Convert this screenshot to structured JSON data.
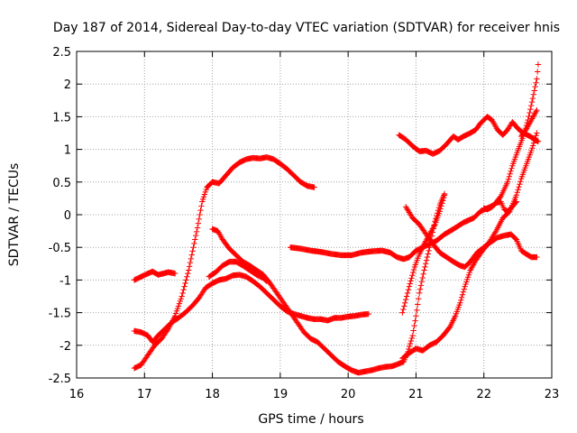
{
  "chart_data": {
    "type": "scatter",
    "title": "Day 187 of 2014, Sidereal Day-to-day VTEC variation (SDTVAR) for receiver hnis",
    "xlabel": "GPS time / hours",
    "ylabel": "SDTVAR / TECUs",
    "xlim": [
      16,
      23
    ],
    "ylim": [
      -2.5,
      2.5
    ],
    "xticks": [
      16,
      17,
      18,
      19,
      20,
      21,
      22,
      23
    ],
    "yticks": [
      -2.5,
      -2,
      -1.5,
      -1,
      -0.5,
      0,
      0.5,
      1,
      1.5,
      2,
      2.5
    ],
    "xtick_labels": [
      "16",
      "17",
      "18",
      "19",
      "20",
      "21",
      "22",
      "23"
    ],
    "ytick_labels": [
      "-2.5",
      "-2",
      "-1.5",
      "-1",
      "-0.5",
      "0",
      "0.5",
      "1",
      "1.5",
      "2",
      "2.5"
    ],
    "grid": true,
    "marker": "+",
    "color": "#ff0000",
    "series": [
      {
        "name": "s1",
        "points": [
          [
            16.85,
            -1.0
          ],
          [
            16.95,
            -0.95
          ],
          [
            17.05,
            -0.9
          ],
          [
            17.12,
            -0.87
          ],
          [
            17.2,
            -0.92
          ],
          [
            17.28,
            -0.9
          ],
          [
            17.35,
            -0.88
          ],
          [
            17.45,
            -0.9
          ]
        ]
      },
      {
        "name": "s2",
        "points": [
          [
            16.85,
            -2.35
          ],
          [
            16.95,
            -2.3
          ],
          [
            17.05,
            -2.15
          ],
          [
            17.15,
            -2.0
          ],
          [
            17.25,
            -1.9
          ],
          [
            17.35,
            -1.75
          ],
          [
            17.45,
            -1.55
          ],
          [
            17.55,
            -1.25
          ],
          [
            17.65,
            -0.85
          ],
          [
            17.72,
            -0.5
          ],
          [
            17.78,
            -0.2
          ],
          [
            17.85,
            0.2
          ],
          [
            17.92,
            0.42
          ],
          [
            18.0,
            0.5
          ],
          [
            18.1,
            0.48
          ],
          [
            18.2,
            0.6
          ],
          [
            18.3,
            0.72
          ],
          [
            18.4,
            0.8
          ],
          [
            18.5,
            0.85
          ],
          [
            18.6,
            0.87
          ],
          [
            18.7,
            0.86
          ],
          [
            18.8,
            0.88
          ],
          [
            18.9,
            0.85
          ],
          [
            19.0,
            0.78
          ],
          [
            19.1,
            0.7
          ],
          [
            19.2,
            0.6
          ],
          [
            19.3,
            0.5
          ],
          [
            19.4,
            0.44
          ],
          [
            19.5,
            0.42
          ]
        ]
      },
      {
        "name": "s3",
        "points": [
          [
            16.85,
            -1.78
          ],
          [
            16.95,
            -1.8
          ],
          [
            17.05,
            -1.85
          ],
          [
            17.12,
            -1.95
          ],
          [
            17.2,
            -1.85
          ],
          [
            17.3,
            -1.75
          ],
          [
            17.4,
            -1.65
          ],
          [
            17.5,
            -1.58
          ],
          [
            17.6,
            -1.5
          ],
          [
            17.7,
            -1.4
          ],
          [
            17.8,
            -1.28
          ],
          [
            17.9,
            -1.12
          ],
          [
            18.0,
            -1.05
          ],
          [
            18.1,
            -1.0
          ],
          [
            18.2,
            -0.98
          ],
          [
            18.3,
            -0.93
          ],
          [
            18.4,
            -0.92
          ],
          [
            18.5,
            -0.95
          ],
          [
            18.6,
            -1.02
          ],
          [
            18.7,
            -1.1
          ],
          [
            18.8,
            -1.2
          ],
          [
            18.9,
            -1.3
          ],
          [
            19.0,
            -1.4
          ],
          [
            19.1,
            -1.48
          ],
          [
            19.2,
            -1.52
          ],
          [
            19.3,
            -1.55
          ],
          [
            19.4,
            -1.58
          ],
          [
            19.5,
            -1.6
          ],
          [
            19.6,
            -1.6
          ],
          [
            19.7,
            -1.62
          ],
          [
            19.8,
            -1.58
          ],
          [
            19.9,
            -1.58
          ],
          [
            20.0,
            -1.56
          ],
          [
            20.1,
            -1.55
          ],
          [
            20.2,
            -1.53
          ],
          [
            20.3,
            -1.52
          ]
        ]
      },
      {
        "name": "s4",
        "points": [
          [
            18.0,
            -0.22
          ],
          [
            18.08,
            -0.25
          ],
          [
            18.15,
            -0.38
          ],
          [
            18.25,
            -0.52
          ],
          [
            18.35,
            -0.62
          ],
          [
            18.45,
            -0.72
          ],
          [
            18.55,
            -0.78
          ],
          [
            18.65,
            -0.85
          ],
          [
            18.75,
            -0.92
          ],
          [
            18.85,
            -1.05
          ],
          [
            18.95,
            -1.2
          ],
          [
            19.05,
            -1.35
          ],
          [
            19.15,
            -1.5
          ],
          [
            19.25,
            -1.65
          ],
          [
            19.35,
            -1.8
          ],
          [
            19.45,
            -1.9
          ],
          [
            19.55,
            -1.95
          ],
          [
            19.65,
            -2.05
          ],
          [
            19.75,
            -2.15
          ],
          [
            19.85,
            -2.25
          ],
          [
            19.95,
            -2.32
          ],
          [
            20.05,
            -2.38
          ],
          [
            20.15,
            -2.42
          ],
          [
            20.25,
            -2.4
          ],
          [
            20.35,
            -2.38
          ],
          [
            20.45,
            -2.35
          ],
          [
            20.55,
            -2.33
          ],
          [
            20.65,
            -2.32
          ],
          [
            20.75,
            -2.28
          ],
          [
            20.82,
            -2.25
          ],
          [
            20.88,
            -2.1
          ],
          [
            20.95,
            -1.85
          ],
          [
            21.0,
            -1.55
          ],
          [
            21.05,
            -1.2
          ],
          [
            21.12,
            -0.85
          ],
          [
            21.2,
            -0.5
          ],
          [
            21.28,
            -0.1
          ],
          [
            21.35,
            0.15
          ],
          [
            21.42,
            0.32
          ]
        ]
      },
      {
        "name": "s5",
        "points": [
          [
            17.95,
            -0.95
          ],
          [
            18.05,
            -0.88
          ],
          [
            18.15,
            -0.78
          ],
          [
            18.25,
            -0.72
          ],
          [
            18.35,
            -0.72
          ],
          [
            18.45,
            -0.78
          ],
          [
            18.55,
            -0.85
          ],
          [
            18.65,
            -0.92
          ],
          [
            18.75,
            -0.97
          ],
          [
            18.8,
            -1.02
          ]
        ]
      },
      {
        "name": "s6",
        "points": [
          [
            19.15,
            -0.5
          ],
          [
            19.3,
            -0.52
          ],
          [
            19.45,
            -0.55
          ],
          [
            19.6,
            -0.57
          ],
          [
            19.75,
            -0.6
          ],
          [
            19.9,
            -0.62
          ],
          [
            20.05,
            -0.62
          ],
          [
            20.2,
            -0.58
          ],
          [
            20.35,
            -0.56
          ],
          [
            20.5,
            -0.55
          ],
          [
            20.62,
            -0.58
          ],
          [
            20.72,
            -0.65
          ],
          [
            20.82,
            -0.68
          ],
          [
            20.9,
            -0.65
          ],
          [
            21.0,
            -0.55
          ],
          [
            21.1,
            -0.5
          ],
          [
            21.2,
            -0.45
          ],
          [
            21.3,
            -0.4
          ],
          [
            21.42,
            -0.3
          ],
          [
            21.55,
            -0.22
          ],
          [
            21.7,
            -0.12
          ],
          [
            21.85,
            -0.05
          ],
          [
            21.95,
            0.05
          ],
          [
            22.05,
            0.1
          ],
          [
            22.15,
            0.15
          ],
          [
            22.25,
            0.28
          ],
          [
            22.35,
            0.5
          ],
          [
            22.42,
            0.75
          ],
          [
            22.5,
            0.98
          ],
          [
            22.58,
            1.2
          ],
          [
            22.65,
            1.45
          ],
          [
            22.72,
            1.78
          ],
          [
            22.78,
            2.08
          ],
          [
            22.8,
            2.3
          ]
        ]
      },
      {
        "name": "s7",
        "points": [
          [
            20.75,
            1.22
          ],
          [
            20.85,
            1.15
          ],
          [
            20.95,
            1.05
          ],
          [
            21.05,
            0.97
          ],
          [
            21.15,
            0.98
          ],
          [
            21.25,
            0.93
          ],
          [
            21.35,
            0.98
          ],
          [
            21.45,
            1.08
          ],
          [
            21.55,
            1.2
          ],
          [
            21.62,
            1.15
          ],
          [
            21.7,
            1.2
          ],
          [
            21.8,
            1.25
          ],
          [
            21.88,
            1.3
          ],
          [
            21.95,
            1.4
          ],
          [
            22.05,
            1.5
          ],
          [
            22.12,
            1.45
          ],
          [
            22.2,
            1.3
          ],
          [
            22.28,
            1.22
          ],
          [
            22.35,
            1.3
          ],
          [
            22.42,
            1.42
          ],
          [
            22.5,
            1.32
          ],
          [
            22.58,
            1.25
          ],
          [
            22.68,
            1.2
          ],
          [
            22.75,
            1.15
          ],
          [
            22.8,
            1.12
          ]
        ]
      },
      {
        "name": "s8",
        "points": [
          [
            20.85,
            0.12
          ],
          [
            20.95,
            -0.05
          ],
          [
            21.05,
            -0.15
          ],
          [
            21.15,
            -0.3
          ],
          [
            21.25,
            -0.45
          ],
          [
            21.35,
            -0.58
          ],
          [
            21.45,
            -0.65
          ],
          [
            21.55,
            -0.72
          ],
          [
            21.65,
            -0.78
          ],
          [
            21.72,
            -0.8
          ],
          [
            21.8,
            -0.72
          ],
          [
            21.9,
            -0.58
          ],
          [
            22.0,
            -0.5
          ],
          [
            22.1,
            -0.42
          ],
          [
            22.2,
            -0.35
          ],
          [
            22.3,
            -0.32
          ],
          [
            22.4,
            -0.3
          ],
          [
            22.48,
            -0.38
          ],
          [
            22.55,
            -0.55
          ],
          [
            22.62,
            -0.6
          ],
          [
            22.7,
            -0.65
          ],
          [
            22.78,
            -0.65
          ]
        ]
      },
      {
        "name": "s9",
        "points": [
          [
            20.8,
            -2.2
          ],
          [
            20.9,
            -2.12
          ],
          [
            21.0,
            -2.05
          ],
          [
            21.1,
            -2.08
          ],
          [
            21.2,
            -2.0
          ],
          [
            21.3,
            -1.95
          ],
          [
            21.4,
            -1.85
          ],
          [
            21.5,
            -1.72
          ],
          [
            21.58,
            -1.55
          ],
          [
            21.65,
            -1.35
          ],
          [
            21.72,
            -1.1
          ],
          [
            21.8,
            -0.85
          ],
          [
            21.88,
            -0.7
          ],
          [
            21.98,
            -0.55
          ],
          [
            22.08,
            -0.42
          ],
          [
            22.18,
            -0.25
          ],
          [
            22.28,
            -0.05
          ],
          [
            22.38,
            0.05
          ],
          [
            22.48,
            0.3
          ],
          [
            22.55,
            0.55
          ],
          [
            22.62,
            0.75
          ],
          [
            22.7,
            0.98
          ],
          [
            22.78,
            1.25
          ]
        ]
      },
      {
        "name": "s10",
        "points": [
          [
            20.8,
            -1.5
          ],
          [
            20.9,
            -1.1
          ],
          [
            20.98,
            -0.8
          ],
          [
            21.05,
            -0.6
          ],
          [
            21.12,
            -0.45
          ],
          [
            21.2,
            -0.3
          ],
          [
            21.28,
            -0.15
          ],
          [
            21.35,
            0.05
          ],
          [
            21.42,
            0.3
          ]
        ]
      },
      {
        "name": "s11",
        "points": [
          [
            22.55,
            1.2
          ],
          [
            22.62,
            1.3
          ],
          [
            22.7,
            1.45
          ],
          [
            22.78,
            1.6
          ]
        ]
      },
      {
        "name": "s12",
        "points": [
          [
            22.0,
            0.1
          ],
          [
            22.05,
            0.08
          ],
          [
            22.12,
            0.12
          ],
          [
            22.18,
            0.18
          ],
          [
            22.25,
            0.2
          ],
          [
            22.3,
            0.08
          ],
          [
            22.35,
            0.05
          ],
          [
            22.4,
            0.1
          ],
          [
            22.48,
            0.2
          ]
        ]
      }
    ]
  }
}
